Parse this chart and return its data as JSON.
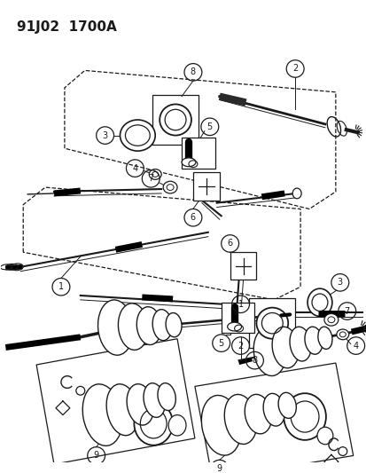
{
  "title": "91J02  1700A",
  "bg_color": "#ffffff",
  "line_color": "#1a1a1a",
  "fig_width": 4.14,
  "fig_height": 5.33,
  "dpi": 100
}
